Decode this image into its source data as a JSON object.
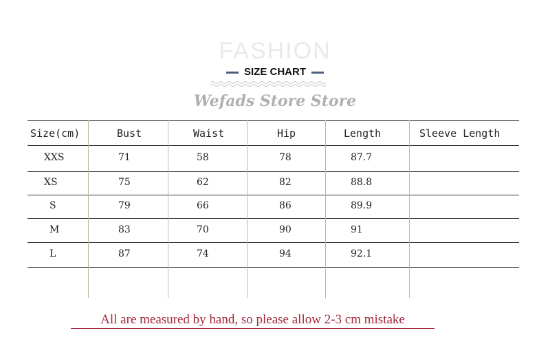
{
  "header": {
    "watermark": "FASHION",
    "title": "SIZE CHART",
    "store_name": "Wefads Store Store"
  },
  "table": {
    "columns": [
      "Size(cm)",
      "Bust",
      "Waist",
      "Hip",
      "Length",
      "Sleeve Length"
    ],
    "rows": [
      [
        "XXS",
        "71",
        "58",
        "78",
        "87.7",
        ""
      ],
      [
        "XS",
        "75",
        "62",
        "82",
        "88.8",
        ""
      ],
      [
        "S",
        "79",
        "66",
        "86",
        "89.9",
        ""
      ],
      [
        "M",
        "83",
        "70",
        "90",
        "91",
        ""
      ],
      [
        "L",
        "87",
        "74",
        "94",
        "92.1",
        ""
      ]
    ]
  },
  "footer": {
    "note": "All are measured by hand, so please allow 2-3 cm mistake"
  },
  "colors": {
    "note": "#a3283c",
    "title_bar": "#4a5f7a",
    "row_line": "#333333",
    "column_line": "#b8b8a0"
  }
}
